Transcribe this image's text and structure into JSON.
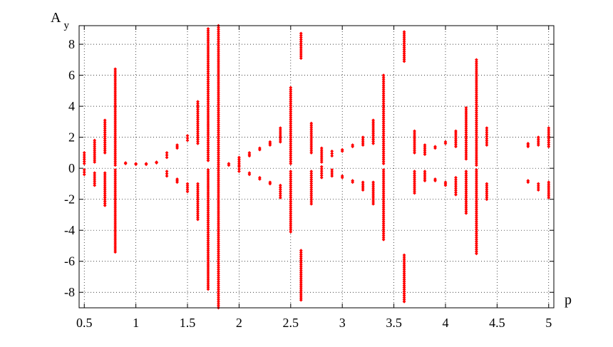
{
  "chart_data": {
    "type": "scatter",
    "title": "",
    "xlabel": "p",
    "ylabel": {
      "main": "A",
      "sub": "y"
    },
    "xlim": [
      0.45,
      5.05
    ],
    "ylim": [
      -9,
      9.2
    ],
    "grid": true,
    "marker_color": "#ff0000",
    "x_ticks": [
      {
        "value": 0.5,
        "label": "0.5"
      },
      {
        "value": 1,
        "label": "1"
      },
      {
        "value": 1.5,
        "label": "1.5"
      },
      {
        "value": 2,
        "label": "2"
      },
      {
        "value": 2.5,
        "label": "2.5"
      },
      {
        "value": 3,
        "label": "3"
      },
      {
        "value": 3.5,
        "label": "3.5"
      },
      {
        "value": 4,
        "label": "4"
      },
      {
        "value": 4.5,
        "label": "4.5"
      },
      {
        "value": 5,
        "label": "5"
      }
    ],
    "y_ticks": [
      {
        "value": -8,
        "label": "-8"
      },
      {
        "value": -6,
        "label": "-6"
      },
      {
        "value": -4,
        "label": "-4"
      },
      {
        "value": -2,
        "label": "-2"
      },
      {
        "value": 0,
        "label": "0"
      },
      {
        "value": 2,
        "label": "2"
      },
      {
        "value": 4,
        "label": "4"
      },
      {
        "value": 6,
        "label": "6"
      },
      {
        "value": 8,
        "label": "8"
      }
    ],
    "columns": [
      {
        "x": 0.5,
        "ranges": [
          [
            0.3,
            1.0
          ],
          [
            -0.4,
            -0.1
          ]
        ]
      },
      {
        "x": 0.6,
        "ranges": [
          [
            0.4,
            1.8
          ],
          [
            -1.1,
            -0.3
          ]
        ]
      },
      {
        "x": 0.7,
        "ranges": [
          [
            1.0,
            3.1
          ],
          [
            -2.4,
            -0.3
          ]
        ]
      },
      {
        "x": 0.8,
        "ranges": [
          [
            0.2,
            6.4
          ],
          [
            -5.4,
            -0.1
          ]
        ]
      },
      {
        "x": 0.9,
        "ranges": [
          [
            0.3,
            0.35
          ]
        ]
      },
      {
        "x": 1.0,
        "ranges": [
          [
            0.25,
            0.3
          ]
        ]
      },
      {
        "x": 1.1,
        "ranges": [
          [
            0.25,
            0.3
          ]
        ]
      },
      {
        "x": 1.2,
        "ranges": [
          [
            0.35,
            0.4
          ]
        ]
      },
      {
        "x": 1.3,
        "ranges": [
          [
            0.7,
            1.0
          ],
          [
            -0.5,
            -0.2
          ]
        ]
      },
      {
        "x": 1.4,
        "ranges": [
          [
            1.3,
            1.5
          ],
          [
            -0.9,
            -0.7
          ]
        ]
      },
      {
        "x": 1.5,
        "ranges": [
          [
            1.8,
            2.1
          ],
          [
            -1.5,
            -1.0
          ]
        ]
      },
      {
        "x": 1.6,
        "ranges": [
          [
            1.6,
            4.3
          ],
          [
            -3.3,
            -1.0
          ]
        ]
      },
      {
        "x": 1.7,
        "ranges": [
          [
            0.5,
            9.0
          ],
          [
            -7.8,
            -0.1
          ]
        ]
      },
      {
        "x": 1.8,
        "ranges": [
          [
            -9.0,
            9.2
          ]
        ]
      },
      {
        "x": 1.9,
        "ranges": [
          [
            0.2,
            0.3
          ]
        ]
      },
      {
        "x": 2.0,
        "ranges": [
          [
            0.2,
            0.7
          ],
          [
            -0.2,
            0.1
          ]
        ]
      },
      {
        "x": 2.1,
        "ranges": [
          [
            0.8,
            1.0
          ],
          [
            -0.4,
            -0.3
          ]
        ]
      },
      {
        "x": 2.2,
        "ranges": [
          [
            1.2,
            1.3
          ],
          [
            -0.7,
            -0.6
          ]
        ]
      },
      {
        "x": 2.3,
        "ranges": [
          [
            1.5,
            1.7
          ],
          [
            -1.0,
            -0.9
          ]
        ]
      },
      {
        "x": 2.4,
        "ranges": [
          [
            1.7,
            2.6
          ],
          [
            -1.9,
            -1.1
          ]
        ]
      },
      {
        "x": 2.5,
        "ranges": [
          [
            0.3,
            5.2
          ],
          [
            -4.1,
            -0.2
          ]
        ]
      },
      {
        "x": 2.6,
        "ranges": [
          [
            7.1,
            8.7
          ],
          [
            -8.5,
            -5.3
          ]
        ]
      },
      {
        "x": 2.7,
        "ranges": [
          [
            1.0,
            2.9
          ],
          [
            -2.3,
            -0.2
          ]
        ]
      },
      {
        "x": 2.8,
        "ranges": [
          [
            0.4,
            1.3
          ],
          [
            -0.6,
            0.1
          ]
        ]
      },
      {
        "x": 2.9,
        "ranges": [
          [
            0.8,
            1.1
          ],
          [
            -0.5,
            -0.1
          ]
        ]
      },
      {
        "x": 3.0,
        "ranges": [
          [
            1.1,
            1.2
          ],
          [
            -0.6,
            -0.5
          ]
        ]
      },
      {
        "x": 3.1,
        "ranges": [
          [
            1.4,
            1.5
          ],
          [
            -0.9,
            -0.8
          ]
        ]
      },
      {
        "x": 3.2,
        "ranges": [
          [
            1.5,
            2.0
          ],
          [
            -1.4,
            -0.9
          ]
        ]
      },
      {
        "x": 3.3,
        "ranges": [
          [
            1.6,
            3.1
          ],
          [
            -2.3,
            -0.9
          ]
        ]
      },
      {
        "x": 3.4,
        "ranges": [
          [
            0.3,
            6.0
          ],
          [
            -4.6,
            -0.1
          ]
        ]
      },
      {
        "x": 3.6,
        "ranges": [
          [
            6.9,
            8.8
          ],
          [
            -8.6,
            -5.6
          ]
        ]
      },
      {
        "x": 3.7,
        "ranges": [
          [
            1.0,
            2.4
          ],
          [
            -1.6,
            -0.2
          ]
        ]
      },
      {
        "x": 3.8,
        "ranges": [
          [
            0.9,
            1.5
          ],
          [
            -0.8,
            -0.2
          ]
        ]
      },
      {
        "x": 3.9,
        "ranges": [
          [
            1.3,
            1.4
          ],
          [
            -0.8,
            -0.7
          ]
        ]
      },
      {
        "x": 4.0,
        "ranges": [
          [
            1.6,
            1.7
          ],
          [
            -1.1,
            -0.9
          ]
        ]
      },
      {
        "x": 4.1,
        "ranges": [
          [
            1.4,
            2.4
          ],
          [
            -1.7,
            -0.6
          ]
        ]
      },
      {
        "x": 4.2,
        "ranges": [
          [
            0.6,
            3.9
          ],
          [
            -2.9,
            -0.2
          ]
        ]
      },
      {
        "x": 4.3,
        "ranges": [
          [
            0.2,
            7.0
          ],
          [
            -5.5,
            -0.1
          ]
        ]
      },
      {
        "x": 4.4,
        "ranges": [
          [
            1.5,
            2.6
          ],
          [
            -2.0,
            -1.0
          ]
        ]
      },
      {
        "x": 4.8,
        "ranges": [
          [
            1.4,
            1.6
          ],
          [
            -0.9,
            -0.8
          ]
        ]
      },
      {
        "x": 4.9,
        "ranges": [
          [
            1.5,
            2.0
          ],
          [
            -1.4,
            -1.0
          ]
        ]
      },
      {
        "x": 5.0,
        "ranges": [
          [
            1.4,
            2.6
          ],
          [
            -1.9,
            -0.9
          ]
        ]
      }
    ]
  }
}
